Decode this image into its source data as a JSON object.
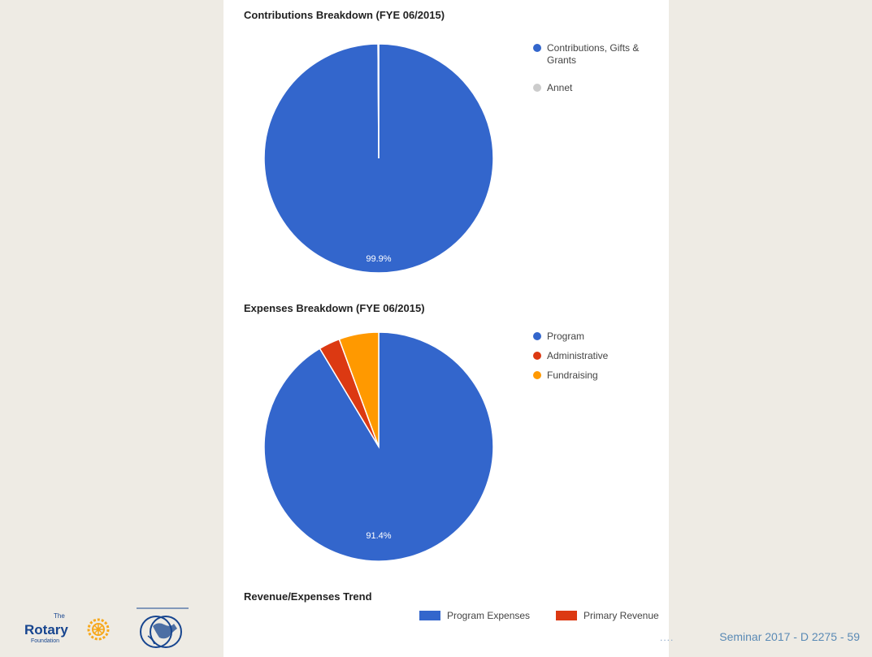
{
  "chart_data": [
    {
      "type": "pie",
      "title": "Contributions Breakdown (FYE 06/2015)",
      "slices": [
        {
          "label": "Contributions, Gifts & Grants",
          "value": 99.9,
          "color": "#3366cc"
        },
        {
          "label": "Annet",
          "value": 0.1,
          "color": "#cccccc"
        }
      ],
      "data_labels": [
        "99.9%"
      ],
      "legend_position": "right"
    },
    {
      "type": "pie",
      "title": "Expenses Breakdown (FYE 06/2015)",
      "slices": [
        {
          "label": "Program",
          "value": 91.4,
          "color": "#3366cc"
        },
        {
          "label": "Administrative",
          "value": 3.0,
          "color": "#dc3912"
        },
        {
          "label": "Fundraising",
          "value": 5.6,
          "color": "#ff9900"
        }
      ],
      "data_labels": [
        "91.4%"
      ],
      "legend_position": "right"
    },
    {
      "type": "bar",
      "title": "Revenue/Expenses Trend",
      "series": [
        {
          "name": "Program Expenses",
          "color": "#3366cc"
        },
        {
          "name": "Primary Revenue",
          "color": "#dc3912"
        }
      ],
      "legend_position": "top"
    }
  ],
  "footer": {
    "dots": "....",
    "text": "Seminar 2017 - D 2275 - 59"
  },
  "logos": {
    "rotary_the": "The",
    "rotary_word": "Rotary",
    "rotary_foundation": "Foundation"
  }
}
